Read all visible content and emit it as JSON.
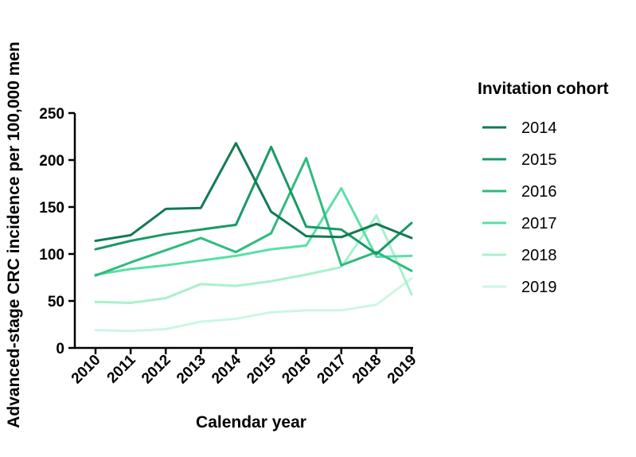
{
  "chart_data": {
    "type": "line",
    "title": "",
    "xlabel": "Calendar year",
    "ylabel": "Advanced-stage CRC incidence per 100,000 men",
    "categories": [
      "2010",
      "2011",
      "2012",
      "2013",
      "2014",
      "2015",
      "2016",
      "2017",
      "2018",
      "2019"
    ],
    "ylim": [
      0,
      250
    ],
    "yticks": [
      0,
      50,
      100,
      150,
      200,
      250
    ],
    "grid": false,
    "legend": {
      "title": "Invitation cohort",
      "placement": "right"
    },
    "series": [
      {
        "name": "2014",
        "color": "#137a52",
        "values": [
          114,
          120,
          148,
          149,
          218,
          145,
          119,
          118,
          132,
          117
        ]
      },
      {
        "name": "2015",
        "color": "#1a9a66",
        "values": [
          105,
          114,
          121,
          126,
          131,
          214,
          129,
          126,
          100,
          133
        ]
      },
      {
        "name": "2016",
        "color": "#2fbb7e",
        "values": [
          77,
          91,
          104,
          117,
          102,
          122,
          202,
          88,
          102,
          82
        ]
      },
      {
        "name": "2017",
        "color": "#5ae0a6",
        "values": [
          78,
          84,
          88,
          93,
          98,
          105,
          109,
          170,
          97,
          98
        ]
      },
      {
        "name": "2018",
        "color": "#a9f0cd",
        "values": [
          49,
          48,
          53,
          68,
          66,
          71,
          78,
          86,
          141,
          57
        ]
      },
      {
        "name": "2019",
        "color": "#cbf7e2",
        "values": [
          19,
          18,
          20,
          28,
          31,
          38,
          40,
          40,
          46,
          74
        ]
      }
    ]
  }
}
